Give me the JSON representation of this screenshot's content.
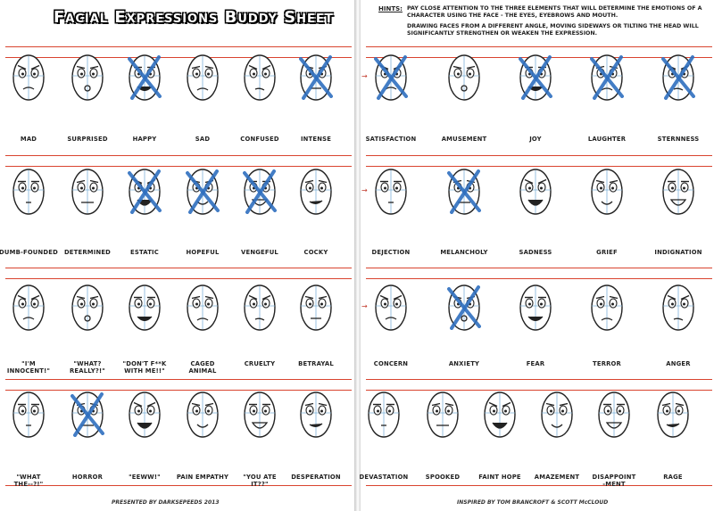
{
  "left_page": {
    "title": "Facial Expressions Buddy Sheet",
    "rows": [
      [
        {
          "label": "MAD",
          "crossed": false
        },
        {
          "label": "SURPRISED",
          "crossed": false
        },
        {
          "label": "HAPPY",
          "crossed": true
        },
        {
          "label": "SAD",
          "crossed": false
        },
        {
          "label": "CONFUSED",
          "crossed": false
        },
        {
          "label": "INTENSE",
          "crossed": true
        }
      ],
      [
        {
          "label": "DUMB-FOUNDED",
          "crossed": false
        },
        {
          "label": "DETERMINED",
          "crossed": false
        },
        {
          "label": "ESTATIC",
          "crossed": true
        },
        {
          "label": "HOPEFUL",
          "crossed": true
        },
        {
          "label": "VENGEFUL",
          "crossed": true
        },
        {
          "label": "COCKY",
          "crossed": false
        }
      ],
      [
        {
          "label": "\"I'M\nINNOCENT!\"",
          "crossed": false
        },
        {
          "label": "\"WHAT?\nREALLY?!\"",
          "crossed": false
        },
        {
          "label": "\"DON'T F**K\nWITH ME!!\"",
          "crossed": false
        },
        {
          "label": "CAGED\nANIMAL",
          "crossed": false
        },
        {
          "label": "CRUELTY",
          "crossed": false
        },
        {
          "label": "BETRAYAL",
          "crossed": false
        }
      ],
      [
        {
          "label": "\"WHAT\nTHE--?!\"",
          "crossed": false
        },
        {
          "label": "HORROR",
          "crossed": true
        },
        {
          "label": "\"EEWW!\"",
          "crossed": false
        },
        {
          "label": "PAIN EMPATHY",
          "crossed": false
        },
        {
          "label": "\"YOU ATE\nIT??\"",
          "crossed": false
        },
        {
          "label": "DESPERATION",
          "crossed": false
        }
      ]
    ],
    "footer": "PRESENTED BY DARKSEPEEDS 2013"
  },
  "right_page": {
    "hints_label": "HINTS:",
    "hints_1": "PAY CLOSE ATTENTION TO THE THREE ELEMENTS THAT WILL DETERMINE THE EMOTIONS OF A CHARACTER USING THE FACE - THE EYES, EYEBROWS AND MOUTH.",
    "hints_2": "DRAWING FACES FROM A DIFFERENT ANGLE, MOVING SIDEWAYS OR TILTING THE HEAD WILL SIGNIFICANTLY STRENGTHEN OR WEAKEN THE EXPRESSION.",
    "rows": [
      [
        {
          "label": "SATISFACTION",
          "crossed": true
        },
        {
          "label": "AMUSEMENT",
          "crossed": false
        },
        {
          "label": "JOY",
          "crossed": true
        },
        {
          "label": "LAUGHTER",
          "crossed": true
        },
        {
          "label": "STERNNESS",
          "crossed": true
        }
      ],
      [
        {
          "label": "DEJECTION",
          "crossed": false
        },
        {
          "label": "MELANCHOLY",
          "crossed": true
        },
        {
          "label": "SADNESS",
          "crossed": false
        },
        {
          "label": "GRIEF",
          "crossed": false
        },
        {
          "label": "INDIGNATION",
          "crossed": false
        }
      ],
      [
        {
          "label": "CONCERN",
          "crossed": false
        },
        {
          "label": "ANXIETY",
          "crossed": true
        },
        {
          "label": "FEAR",
          "crossed": false
        },
        {
          "label": "TERROR",
          "crossed": false
        },
        {
          "label": "ANGER",
          "crossed": false
        }
      ],
      [
        {
          "label": "DEVASTATION",
          "crossed": false
        },
        {
          "label": "SPOOKED",
          "crossed": false
        },
        {
          "label": "FAINT HOPE",
          "crossed": false
        },
        {
          "label": "AMAZEMENT",
          "crossed": false
        },
        {
          "label": "DISAPPOINT\n-MENT",
          "crossed": false
        },
        {
          "label": "RAGE",
          "crossed": false
        }
      ]
    ],
    "footer": "INSPIRED BY TOM BRANCROFT & SCOTT McCLOUD"
  },
  "colors": {
    "cross": "#2f6fbf",
    "guide": "#7fb3d9",
    "rule": "#d9442f",
    "ink": "#222222"
  }
}
